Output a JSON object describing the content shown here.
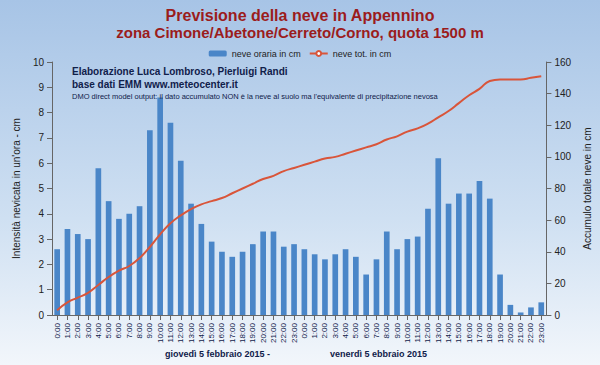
{
  "chart_data": {
    "type": "bar",
    "title": "Previsione della neve in Appennino",
    "subtitle": "zona Cimone/Abetone/Cerreto/Corno, quota 1500 m",
    "annotations": [
      "Elaborazione Luca Lombroso, Pierluigi Randi",
      "base dati EMM www.meteocenter.it",
      "DMO direct model output: il dato accumulato NON è la neve al suolo ma l'equivalente di precipitazione nevosa"
    ],
    "day_labels": [
      "giovedì 5 febbraio 2015 -",
      "venerdì 5 ebbraio 2015"
    ],
    "ylabel": "Intensità nevicata in un'ora - cm",
    "y2label": "Accumulo totale neve in cm",
    "categories": [
      "0:00",
      "1:00",
      "2:00",
      "3:00",
      "4:00",
      "5:00",
      "6:00",
      "7:00",
      "8:00",
      "9:00",
      "10:00",
      "11:00",
      "12:00",
      "13:00",
      "14:00",
      "15:00",
      "16:00",
      "17:00",
      "18:00",
      "19:00",
      "20:00",
      "21:00",
      "22:00",
      "23:00",
      "0:00",
      "1:00",
      "2:00",
      "3:00",
      "4:00",
      "5:00",
      "6:00",
      "7:00",
      "8:00",
      "9:00",
      "10:00",
      "11:00",
      "12:00",
      "13:00",
      "14:00",
      "15:00",
      "16:00",
      "17:00",
      "18:00",
      "19:00",
      "20:00",
      "21:00",
      "22:00",
      "23:00"
    ],
    "series": [
      {
        "name": "neve oraria in cm",
        "type": "bar",
        "color": "#4a86c8",
        "values": [
          2.6,
          3.4,
          3.2,
          3.0,
          5.8,
          4.5,
          3.8,
          4.0,
          4.3,
          7.3,
          8.6,
          7.6,
          6.1,
          4.4,
          3.6,
          2.9,
          2.5,
          2.3,
          2.5,
          2.8,
          3.3,
          3.3,
          2.7,
          2.8,
          2.6,
          2.4,
          2.2,
          2.4,
          2.6,
          2.3,
          1.6,
          2.2,
          3.3,
          2.6,
          3.0,
          3.1,
          4.2,
          6.2,
          4.4,
          4.8,
          4.8,
          5.3,
          4.6,
          1.6,
          0.4,
          0.1,
          0.3,
          0.5
        ]
      },
      {
        "name": "neve tot. in cm",
        "type": "line",
        "axis": "y2",
        "color": "#d9553a",
        "values": [
          3,
          8,
          11,
          14,
          19,
          24,
          28,
          31,
          36,
          43,
          51,
          58,
          63,
          67,
          70,
          72,
          74,
          77,
          80,
          83,
          86,
          88,
          91,
          93,
          95,
          97,
          99,
          100,
          102,
          104,
          106,
          108,
          111,
          113,
          116,
          118,
          121,
          125,
          129,
          134,
          139,
          143,
          148,
          149,
          149,
          149,
          150,
          151
        ]
      }
    ],
    "ylim": [
      0,
      10
    ],
    "yticks": [
      0,
      1,
      2,
      3,
      4,
      5,
      6,
      7,
      8,
      9,
      10
    ],
    "y2lim": [
      0,
      160
    ],
    "y2ticks": [
      0,
      20,
      40,
      60,
      80,
      100,
      120,
      140,
      160
    ],
    "legend": "top",
    "grid": false
  }
}
